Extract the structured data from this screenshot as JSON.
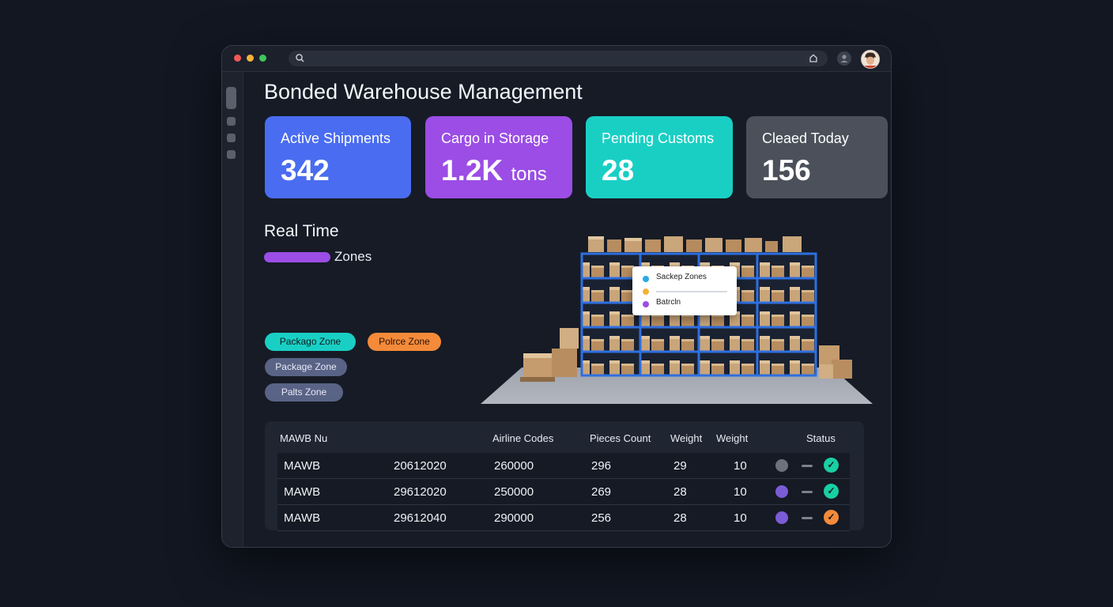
{
  "app": {
    "title": "Bonded Warehouse Management"
  },
  "colors": {
    "background": "#121722",
    "card_blue": "#4a6cf0",
    "card_purple": "#9b4de5",
    "card_teal": "#19cfc4",
    "card_gray": "#4b505a",
    "accent_orange": "#f48a3a",
    "rack_blue": "#2f6fe0"
  },
  "stats": [
    {
      "label": "Active Shipments",
      "value": "342",
      "unit": ""
    },
    {
      "label": "Cargo in Storage",
      "value": "1.2K",
      "unit": "tons"
    },
    {
      "label": "Pending Customs",
      "value": "28",
      "unit": ""
    },
    {
      "label": "Cleaed Today",
      "value": "156",
      "unit": ""
    }
  ],
  "realtime": {
    "title": "Real Time",
    "zones_label": "Zones",
    "chips": [
      {
        "label": "Packago Zone"
      },
      {
        "label": "Polrce Zone"
      },
      {
        "label": "Package Zone"
      },
      {
        "label": "Palts Zone"
      }
    ]
  },
  "popup": {
    "items": [
      {
        "label": "Sackep Zones"
      },
      {
        "label": ""
      },
      {
        "label": "Batrcln"
      }
    ]
  },
  "table": {
    "headers": [
      "MAWB Nu",
      "Airline Codes",
      "Pieces Count",
      "Weight",
      "Weight",
      "Status"
    ],
    "rows": [
      {
        "c1": "MAWB",
        "c2": "20612020",
        "c3": "260000",
        "c4": "296",
        "c5": "29",
        "c6": "10"
      },
      {
        "c1": "MAWB",
        "c2": "29612020",
        "c3": "250000",
        "c4": "269",
        "c5": "28",
        "c6": "10"
      },
      {
        "c1": "MAWB",
        "c2": "29612040",
        "c3": "290000",
        "c4": "256",
        "c5": "28",
        "c6": "10"
      }
    ],
    "status_icons": [
      "check-circle-icon",
      "check-circle-icon",
      "check-circle-icon"
    ]
  }
}
